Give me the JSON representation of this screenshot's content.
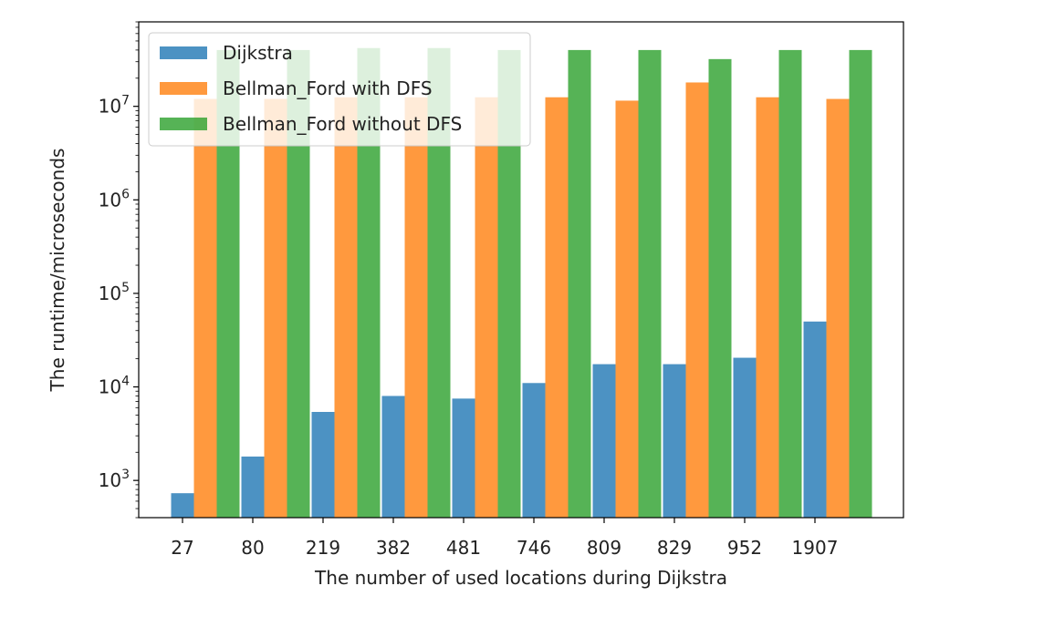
{
  "chart_data": {
    "type": "bar",
    "title": "",
    "xlabel": "The number of used locations during Dijkstra",
    "ylabel": "The runtime/microseconds",
    "yscale": "log",
    "ylim": [
      400,
      80000000
    ],
    "categories": [
      "27",
      "80",
      "219",
      "382",
      "481",
      "746",
      "809",
      "829",
      "952",
      "1907"
    ],
    "y_ticks": [
      {
        "value": 1000,
        "base": "10",
        "exp": "3"
      },
      {
        "value": 10000,
        "base": "10",
        "exp": "4"
      },
      {
        "value": 100000,
        "base": "10",
        "exp": "5"
      },
      {
        "value": 1000000,
        "base": "10",
        "exp": "6"
      },
      {
        "value": 10000000,
        "base": "10",
        "exp": "7"
      }
    ],
    "series": [
      {
        "name": "Dijkstra",
        "color": "#1f77b4",
        "values": [
          730,
          1800,
          5400,
          8000,
          7500,
          11000,
          17500,
          17500,
          20500,
          50000
        ]
      },
      {
        "name": "Bellman_Ford with DFS",
        "color": "#ff7f0e",
        "values": [
          12000000,
          12000000,
          12500000,
          12500000,
          12500000,
          12500000,
          11500000,
          18000000,
          12500000,
          12000000
        ]
      },
      {
        "name": "Bellman_Ford without DFS",
        "color": "#2ca02c",
        "values": [
          40000000,
          40000000,
          42000000,
          42000000,
          40000000,
          40000000,
          40000000,
          32000000,
          40000000,
          40000000
        ]
      }
    ],
    "grid": false,
    "legend": "top-left"
  }
}
